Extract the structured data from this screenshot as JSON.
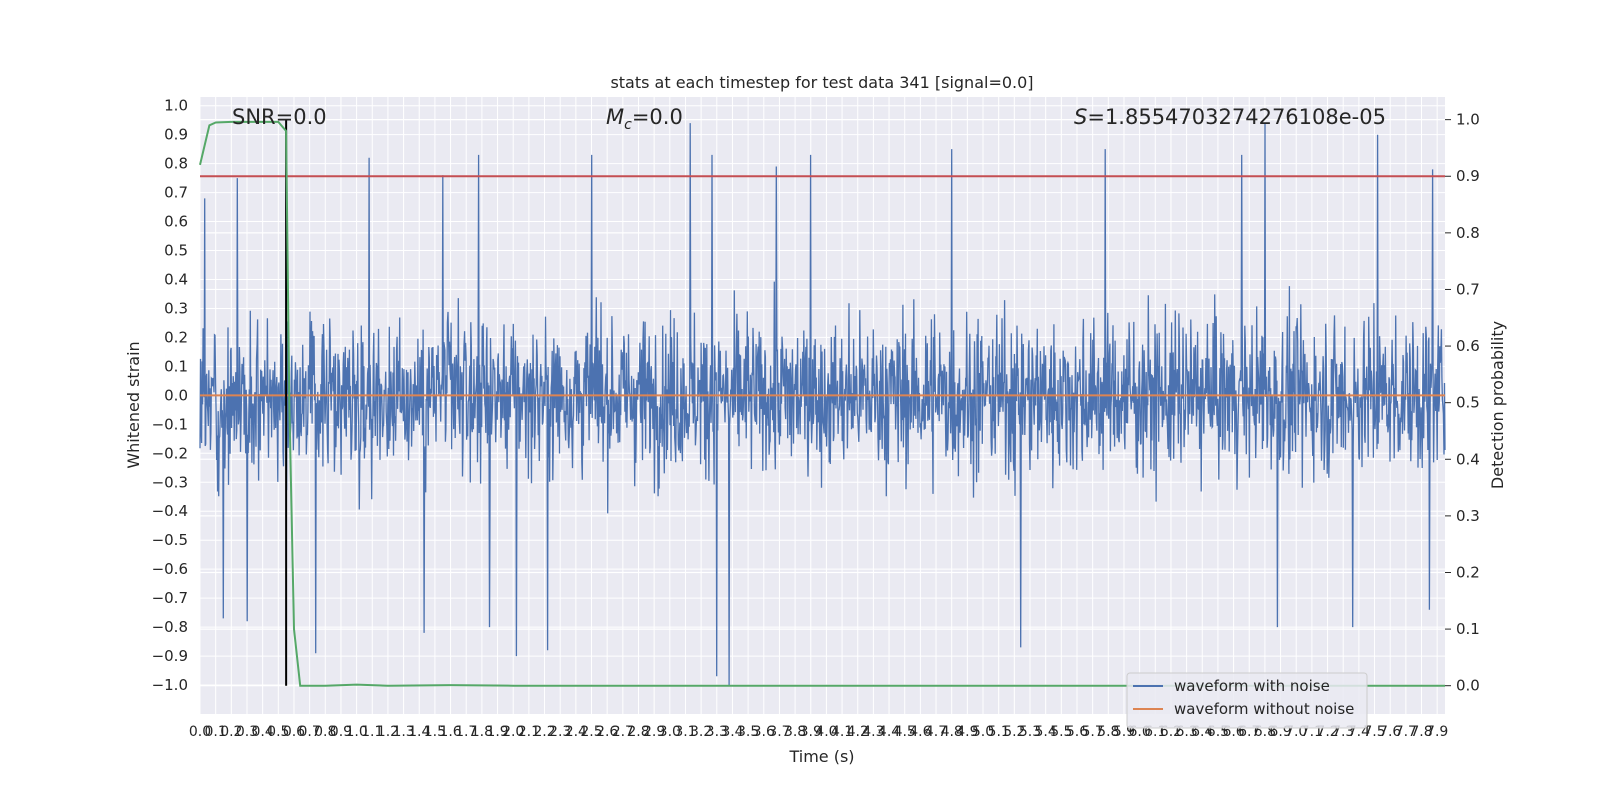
{
  "chart_data": {
    "type": "line",
    "title": "stats at each timestep for test data 341 [signal=0.0]",
    "xlabel": "Time (s)",
    "ylabel_left": "Whitened strain",
    "ylabel_right": "Detection probability",
    "xlim": [
      0.0,
      7.95
    ],
    "ylim_left": [
      -1.1,
      1.03
    ],
    "ylim_right": [
      -0.05,
      1.04
    ],
    "yticks_left": [
      "1.0",
      "0.9",
      "0.8",
      "0.7",
      "0.6",
      "0.5",
      "0.4",
      "0.3",
      "0.2",
      "0.1",
      "0.0",
      "−0.1",
      "−0.2",
      "−0.3",
      "−0.4",
      "−0.5",
      "−0.6",
      "−0.7",
      "−0.8",
      "−0.9",
      "−1.0"
    ],
    "yticks_left_values": [
      1.0,
      0.9,
      0.8,
      0.7,
      0.6,
      0.5,
      0.4,
      0.3,
      0.2,
      0.1,
      0.0,
      -0.1,
      -0.2,
      -0.3,
      -0.4,
      -0.5,
      -0.6,
      -0.7,
      -0.8,
      -0.9,
      -1.0
    ],
    "yticks_right": [
      "1.0",
      "0.9",
      "0.8",
      "0.7",
      "0.6",
      "0.5",
      "0.4",
      "0.3",
      "0.2",
      "0.1",
      "0.0"
    ],
    "yticks_right_values": [
      1.0,
      0.9,
      0.8,
      0.7,
      0.6,
      0.5,
      0.4,
      0.3,
      0.2,
      0.1,
      0.0
    ],
    "xticks": [
      "0.0",
      "0.1",
      "0.2",
      "0.3",
      "0.4",
      "0.5",
      "0.6",
      "0.7",
      "0.8",
      "0.9",
      "1.0",
      "1.1",
      "1.2",
      "1.3",
      "1.4",
      "1.5",
      "1.6",
      "1.7",
      "1.8",
      "1.9",
      "2.0",
      "2.1",
      "2.2",
      "2.3",
      "2.4",
      "2.5",
      "2.6",
      "2.7",
      "2.8",
      "2.9",
      "3.0",
      "3.1",
      "3.2",
      "3.3",
      "3.4",
      "3.5",
      "3.6",
      "3.7",
      "3.8",
      "3.9",
      "4.0",
      "4.1",
      "4.2",
      "4.3",
      "4.4",
      "4.5",
      "4.6",
      "4.7",
      "4.8",
      "4.9",
      "5.0",
      "5.1",
      "5.2",
      "5.3",
      "5.4",
      "5.5",
      "5.6",
      "5.7",
      "5.8",
      "5.9",
      "6.0",
      "6.1",
      "6.2",
      "6.3",
      "6.4",
      "6.5",
      "6.6",
      "6.7",
      "6.8",
      "6.9",
      "7.0",
      "7.1",
      "7.2",
      "7.3",
      "7.4",
      "7.5",
      "7.6",
      "7.7",
      "7.8",
      "7.9"
    ],
    "annotations": {
      "snr": "SNR=0.0",
      "mc_symbol": "M",
      "mc_sub": "c",
      "mc_value": "=0.0",
      "s_symbol": "S",
      "s_value": "=1.8554703274276108e-05"
    },
    "series": [
      {
        "name": "waveform with noise",
        "axis": "left",
        "color": "#4c72b0",
        "envelope_note": "dense noise waveform, approx range -1.0 to 0.95",
        "peaks": [
          {
            "x": 0.03,
            "y": 0.68
          },
          {
            "x": 0.24,
            "y": 0.75
          },
          {
            "x": 0.55,
            "y": 0.78
          },
          {
            "x": 1.08,
            "y": 0.82
          },
          {
            "x": 1.55,
            "y": 0.76
          },
          {
            "x": 1.78,
            "y": 0.83
          },
          {
            "x": 2.5,
            "y": 0.83
          },
          {
            "x": 3.13,
            "y": 0.94
          },
          {
            "x": 3.27,
            "y": 0.83
          },
          {
            "x": 3.68,
            "y": 0.79
          },
          {
            "x": 3.9,
            "y": 0.83
          },
          {
            "x": 4.8,
            "y": 0.85
          },
          {
            "x": 5.24,
            "y": 0.81
          },
          {
            "x": 5.78,
            "y": 0.85
          },
          {
            "x": 6.65,
            "y": 0.83
          },
          {
            "x": 6.8,
            "y": 0.94
          },
          {
            "x": 7.52,
            "y": 0.9
          },
          {
            "x": 7.87,
            "y": 0.78
          }
        ],
        "troughs": [
          {
            "x": 0.15,
            "y": -0.77
          },
          {
            "x": 0.3,
            "y": -0.78
          },
          {
            "x": 0.74,
            "y": -0.89
          },
          {
            "x": 1.43,
            "y": -0.82
          },
          {
            "x": 1.85,
            "y": -0.8
          },
          {
            "x": 2.02,
            "y": -0.9
          },
          {
            "x": 2.22,
            "y": -0.88
          },
          {
            "x": 3.3,
            "y": -0.97
          },
          {
            "x": 3.38,
            "y": -1.0
          },
          {
            "x": 5.24,
            "y": -0.87
          },
          {
            "x": 6.88,
            "y": -0.8
          },
          {
            "x": 7.36,
            "y": -0.8
          },
          {
            "x": 7.85,
            "y": -0.74
          }
        ]
      },
      {
        "name": "waveform without noise",
        "axis": "left",
        "color": "#dd8452",
        "x": [
          0.0,
          7.95
        ],
        "y": [
          0.0,
          0.0
        ]
      },
      {
        "name": "detection probability",
        "axis": "right",
        "color": "#55a868",
        "x": [
          0.0,
          0.06,
          0.1,
          0.2,
          0.3,
          0.4,
          0.5,
          0.55,
          0.57,
          0.6,
          0.64,
          0.7,
          0.8,
          1.0,
          1.2,
          1.6,
          2.0,
          3.0,
          4.0,
          5.0,
          6.0,
          7.0,
          7.95
        ],
        "y": [
          0.92,
          0.99,
          0.995,
          0.996,
          0.996,
          0.996,
          0.996,
          0.98,
          0.5,
          0.1,
          0.0,
          0.0,
          0.0,
          0.002,
          0.0,
          0.001,
          0.0,
          0.0,
          0.0,
          0.0,
          0.0,
          0.0,
          0.0
        ]
      }
    ],
    "reference_lines": {
      "threshold_right": 0.9,
      "threshold_color": "#c44e52",
      "vertical_x": 0.55,
      "vertical_color": "#000000"
    },
    "legend": {
      "position": "lower-right",
      "entries": [
        "waveform with noise",
        "waveform without noise"
      ]
    },
    "grid": true,
    "background": "#eaeaf2"
  }
}
